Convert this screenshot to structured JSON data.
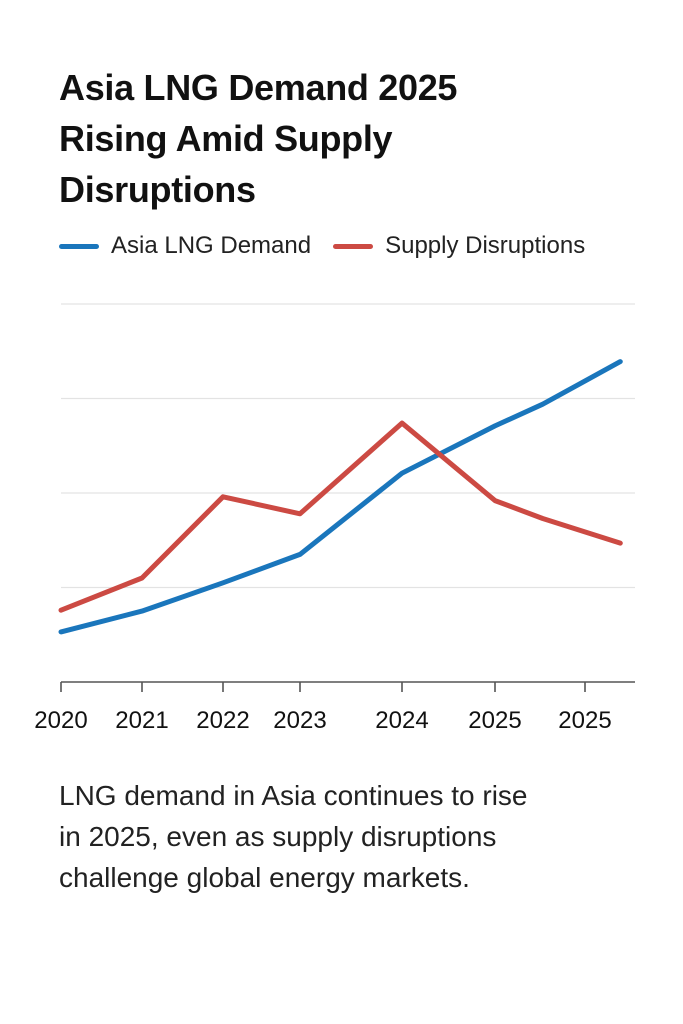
{
  "chart_data": {
    "type": "line",
    "title": "Asia LNG Demand 2025 Rising Amid Supply Disruptions",
    "title_lines": [
      "Asia LNG Demand 2025",
      "Rising Amid Supply",
      "Disruptions"
    ],
    "xlabel": "",
    "ylabel": "",
    "categories": [
      "2020",
      "2021",
      "2022",
      "2023",
      "2024",
      "2025",
      "2025"
    ],
    "y_tick_labels": [],
    "ylim": [
      0,
      4
    ],
    "grid": true,
    "legend_position": "top-left",
    "series": [
      {
        "name": "Asia LNG Demand",
        "color": "#1a76bc",
        "points": [
          {
            "x": 0,
            "y": 0.53
          },
          {
            "x": 1,
            "y": 0.75
          },
          {
            "x": 2,
            "y": 1.05
          },
          {
            "x": 3,
            "y": 1.35
          },
          {
            "x": 4,
            "y": 2.21
          },
          {
            "x": 5,
            "y": 2.71
          },
          {
            "x": 5.53,
            "y": 2.94
          },
          {
            "x": 6.38,
            "y": 3.39
          }
        ]
      },
      {
        "name": "Supply Disruptions",
        "color": "#cc4a43",
        "points": [
          {
            "x": 0,
            "y": 0.76
          },
          {
            "x": 1,
            "y": 1.1
          },
          {
            "x": 2,
            "y": 1.96
          },
          {
            "x": 3,
            "y": 1.78
          },
          {
            "x": 4,
            "y": 2.74
          },
          {
            "x": 5,
            "y": 1.92
          },
          {
            "x": 5.53,
            "y": 1.73
          },
          {
            "x": 6.38,
            "y": 1.47
          }
        ]
      }
    ]
  },
  "caption_lines": [
    "LNG demand in Asia continues to rise",
    "in 2025, even as supply disruptions",
    "challenge global energy markets."
  ]
}
